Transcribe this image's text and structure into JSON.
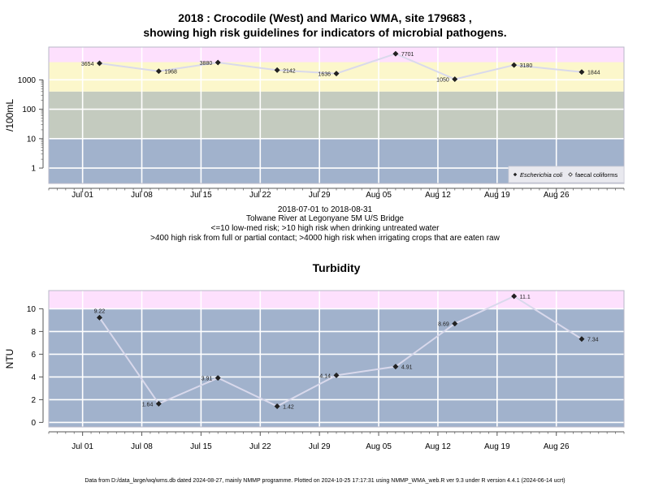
{
  "page": {
    "title_line1": "2018 : Crocodile (West) and Marico WMA, site 179683 ,",
    "title_line2": "showing high risk guidelines for indicators of microbial pathogens.",
    "date_range": "2018-07-01 to 2018-08-31",
    "site_name": "Tolwane River at Legonyane 5M U/S Bridge",
    "guideline_note1": "<=10 low-med risk; >10 high risk when drinking untreated water",
    "guideline_note2": ">400 high risk from full or partial contact; >4000 high risk when irrigating crops that are eaten raw",
    "footer": "Data from D:/data_large/wq/wms.db dated 2024-08-27, mainly NMMP programme. Plotted on 2024-10-25 17:17:31 using NMMP_WMA_web.R ver 9.3 under R version 4.4.1 (2024-06-14 ucrt)"
  },
  "chart_data": [
    {
      "type": "line",
      "title": "",
      "ylabel": "/100mL",
      "yscale": "log",
      "ylim": [
        0.3,
        13000
      ],
      "yticks": [
        1,
        10,
        100,
        1000
      ],
      "ytick_labels": [
        "1",
        "10",
        "100",
        "1000"
      ],
      "xlim": [
        "2018-06-27",
        "2018-09-03"
      ],
      "xticks": [
        "2018-07-01",
        "2018-07-08",
        "2018-07-15",
        "2018-07-22",
        "2018-07-29",
        "2018-08-05",
        "2018-08-12",
        "2018-08-19",
        "2018-08-26"
      ],
      "xtick_labels": [
        "Jul 01",
        "Jul 08",
        "Jul 15",
        "Jul 22",
        "Jul 29",
        "Aug 05",
        "Aug 12",
        "Aug 19",
        "Aug 26"
      ],
      "bands": [
        {
          "from": 0.3,
          "to": 10,
          "color": "#a1b2cc"
        },
        {
          "from": 10,
          "to": 400,
          "color": "#c4cbbf"
        },
        {
          "from": 400,
          "to": 4000,
          "color": "#fcf7cb"
        },
        {
          "from": 4000,
          "to": 13000,
          "color": "#fde0fd"
        }
      ],
      "series": [
        {
          "name": "Escherichia coli",
          "x": [
            "2018-07-03",
            "2018-07-10",
            "2018-07-17",
            "2018-07-24",
            "2018-07-31",
            "2018-08-07",
            "2018-08-14",
            "2018-08-21",
            "2018-08-29"
          ],
          "values": [
            3654,
            1968,
            3880,
            2142,
            1636,
            7701,
            1050,
            3180,
            1844
          ],
          "labels": [
            "3654",
            "1968",
            "3880",
            "2142",
            "1636",
            "7701",
            "1050",
            "3180",
            "1844"
          ],
          "label_side": [
            "left",
            "right",
            "left",
            "right",
            "left",
            "right",
            "left",
            "right",
            "right"
          ]
        }
      ],
      "legend": {
        "position": "bottom-right",
        "entries": [
          "Escherichia coli",
          "faecal coliforms"
        ]
      },
      "grid": true,
      "line_color": "#d9d9ec",
      "marker_color": "#222222"
    },
    {
      "type": "line",
      "title": "Turbidity",
      "ylabel": "NTU",
      "ylim": [
        -0.4,
        11.6
      ],
      "yticks": [
        0,
        2,
        4,
        6,
        8,
        10
      ],
      "ytick_labels": [
        "0",
        "2",
        "4",
        "6",
        "8",
        "10"
      ],
      "xlim": [
        "2018-06-27",
        "2018-09-03"
      ],
      "xticks": [
        "2018-07-01",
        "2018-07-08",
        "2018-07-15",
        "2018-07-22",
        "2018-07-29",
        "2018-08-05",
        "2018-08-12",
        "2018-08-19",
        "2018-08-26"
      ],
      "xtick_labels": [
        "Jul 01",
        "Jul 08",
        "Jul 15",
        "Jul 22",
        "Jul 29",
        "Aug 05",
        "Aug 12",
        "Aug 19",
        "Aug 26"
      ],
      "bands": [
        {
          "from": -0.4,
          "to": 10,
          "color": "#a1b2cc"
        },
        {
          "from": 10,
          "to": 11.6,
          "color": "#fde0fd"
        }
      ],
      "series": [
        {
          "name": "",
          "x": [
            "2018-07-03",
            "2018-07-10",
            "2018-07-17",
            "2018-07-24",
            "2018-07-31",
            "2018-08-07",
            "2018-08-14",
            "2018-08-21",
            "2018-08-29"
          ],
          "values": [
            9.22,
            1.64,
            3.91,
            1.42,
            4.14,
            4.91,
            8.69,
            11.1,
            7.34
          ],
          "labels": [
            "9.22",
            "1.64",
            "3.91",
            "1.42",
            "4.14",
            "4.91",
            "8.69",
            "11.1",
            "7.34"
          ],
          "label_side": [
            "above",
            "left",
            "left",
            "right",
            "left",
            "right",
            "left",
            "right",
            "right"
          ]
        }
      ],
      "grid": true,
      "line_color": "#d9d9ec",
      "marker_color": "#222222"
    }
  ]
}
